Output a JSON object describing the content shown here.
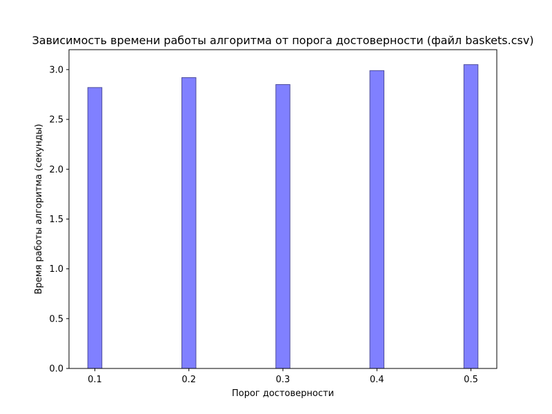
{
  "chart_data": {
    "type": "bar",
    "title": "Зависимость времени работы алгоритма от порога достоверности (файл baskets.csv)",
    "xlabel": "Порог достоверности",
    "ylabel": "Время работы алгоритма (секунды)",
    "x": [
      0.1,
      0.2,
      0.3,
      0.4,
      0.5
    ],
    "x_tick_labels": [
      "0.1",
      "0.2",
      "0.3",
      "0.4",
      "0.5"
    ],
    "values": [
      2.82,
      2.92,
      2.85,
      2.99,
      3.05
    ],
    "xlim": [
      0.0725,
      0.5275
    ],
    "ylim": [
      0,
      3.2
    ],
    "y_ticks": [
      0.0,
      0.5,
      1.0,
      1.5,
      2.0,
      2.5,
      3.0
    ],
    "y_tick_labels": [
      "0.0",
      "0.5",
      "1.0",
      "1.5",
      "2.0",
      "2.5",
      "3.0"
    ],
    "bar_width": 0.015,
    "bar_color": "#8080ff",
    "bar_edge_color": "#4d4d99",
    "grid": false,
    "legend": "none"
  }
}
